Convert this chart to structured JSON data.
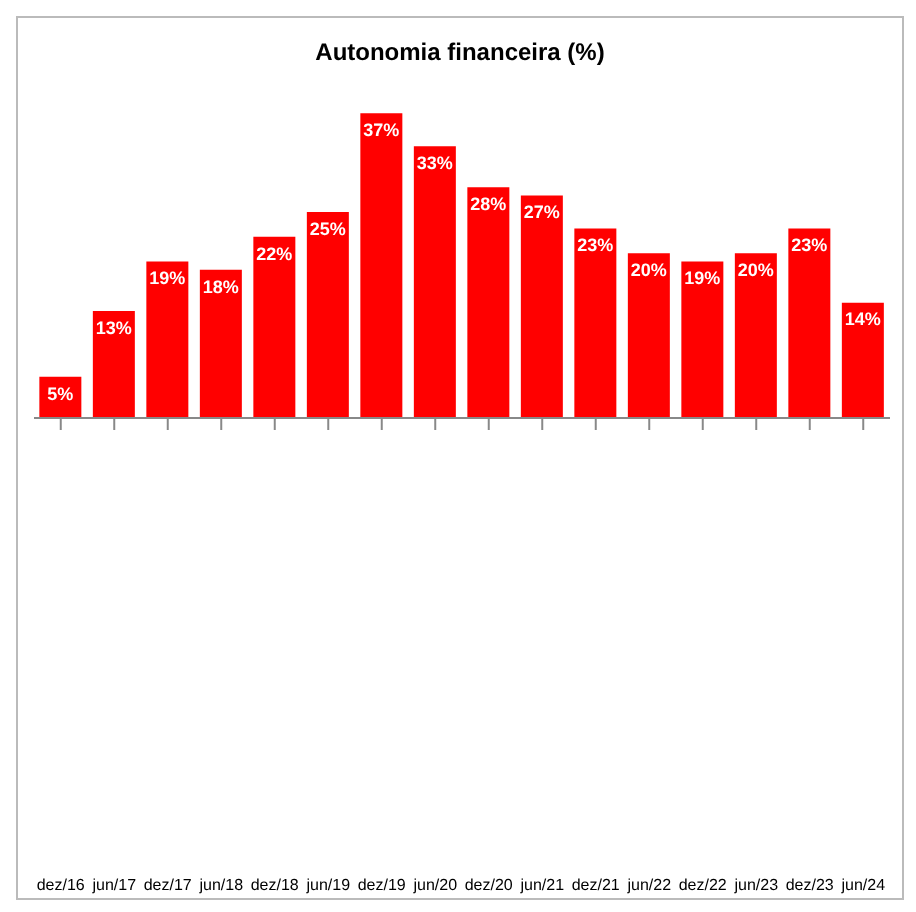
{
  "chart_data": {
    "type": "bar",
    "title": "Autonomia financeira (%)",
    "categories": [
      "dez/16",
      "jun/17",
      "dez/17",
      "jun/18",
      "dez/18",
      "jun/19",
      "dez/19",
      "jun/20",
      "dez/20",
      "jun/21",
      "dez/21",
      "jun/22",
      "dez/22",
      "jun/23",
      "dez/23",
      "jun/24"
    ],
    "values": [
      5,
      13,
      19,
      18,
      22,
      25,
      37,
      33,
      28,
      27,
      23,
      20,
      19,
      20,
      23,
      14
    ],
    "value_labels": [
      "5%",
      "13%",
      "19%",
      "18%",
      "22%",
      "25%",
      "37%",
      "33%",
      "28%",
      "27%",
      "23%",
      "20%",
      "19%",
      "20%",
      "23%",
      "14%"
    ],
    "color": "#ff0000",
    "grid": false,
    "legend": false
  }
}
